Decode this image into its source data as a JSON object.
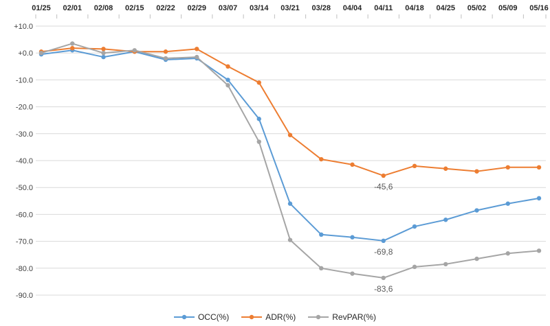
{
  "chart_data": {
    "type": "line",
    "x": [
      "01/25",
      "02/01",
      "02/08",
      "02/15",
      "02/22",
      "02/29",
      "03/07",
      "03/14",
      "03/21",
      "03/28",
      "04/04",
      "04/11",
      "04/18",
      "04/25",
      "05/02",
      "05/09",
      "05/16"
    ],
    "series": [
      {
        "name": "OCC(%)",
        "color": "#5B9BD5",
        "values": [
          -0.5,
          1.0,
          -1.5,
          0.5,
          -2.5,
          -2.0,
          -10.0,
          -24.5,
          -56.0,
          -67.5,
          -68.5,
          -69.8,
          -64.5,
          -62.0,
          -58.5,
          -56.0,
          -54.0
        ]
      },
      {
        "name": "ADR(%)",
        "color": "#ED7D31",
        "values": [
          0.5,
          1.8,
          1.5,
          0.5,
          0.5,
          1.5,
          -5.0,
          -11.0,
          -30.5,
          -39.5,
          -41.5,
          -45.6,
          -42.0,
          -43.0,
          -44.0,
          -42.5,
          -42.5
        ]
      },
      {
        "name": "RevPAR(%)",
        "color": "#A5A5A5",
        "values": [
          0.0,
          3.5,
          0.0,
          1.0,
          -2.0,
          -1.5,
          -12.0,
          -33.0,
          -69.5,
          -80.0,
          -82.0,
          -83.6,
          -79.5,
          -78.5,
          -76.5,
          -74.5,
          -73.5
        ]
      }
    ],
    "ylim": [
      -90,
      10
    ],
    "ytick_step": 10,
    "ytick_labels": [
      "+10.0",
      "+0.0",
      "-10.0",
      "-20.0",
      "-30.0",
      "-40.0",
      "-50.0",
      "-60.0",
      "-70.0",
      "-80.0",
      "-90.0"
    ],
    "annotations": [
      {
        "series": "ADR(%)",
        "x_index": 11,
        "text": "-45,6"
      },
      {
        "series": "OCC(%)",
        "x_index": 11,
        "text": "-69,8"
      },
      {
        "series": "RevPAR(%)",
        "x_index": 11,
        "text": "-83,6"
      }
    ],
    "grid": true,
    "legend_position": "bottom",
    "title": "",
    "xlabel": "",
    "ylabel": ""
  },
  "colors": {
    "gridline": "#d9d9d9",
    "tick": "#bfbfbf",
    "background": "#ffffff"
  }
}
